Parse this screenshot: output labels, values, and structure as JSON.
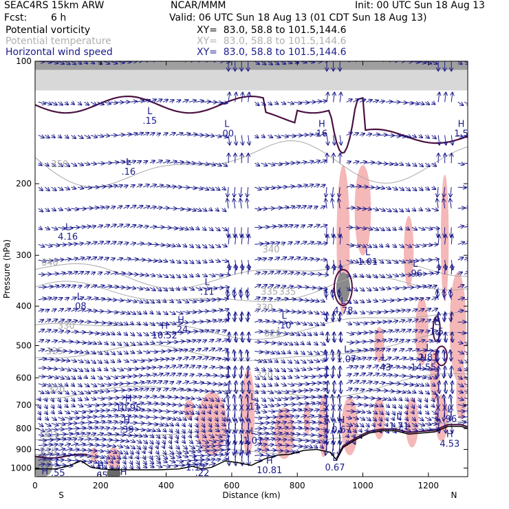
{
  "header": {
    "model": "SEAC4RS 15km ARW",
    "center": "NCAR/MMM",
    "init": "Init: 00 UTC Sun 18 Aug 13",
    "fcst_label": "Fcst:",
    "fcst_value": "6 h",
    "valid": "Valid: 06 UTC Sun 18 Aug 13 (01 CDT Sun 18 Aug 13)",
    "fields": [
      {
        "name": "Potential vorticity",
        "xy": "XY=  83.0, 58.8 to 101.5,144.6",
        "color": "#000000"
      },
      {
        "name": "Potential temperature",
        "xy": "XY=  83.0, 58.8 to 101.5,144.6",
        "color": "#b0b0b0"
      },
      {
        "name": "Horizontal wind speed",
        "xy": "XY=  83.0, 58.8 to 101.5,144.6",
        "color": "#1a1a8c"
      }
    ]
  },
  "chart_data": {
    "type": "cross-section",
    "xlabel": "Distance (km)",
    "ylabel": "Pressure (hPa)",
    "xlim": [
      0,
      1320
    ],
    "ylim": [
      1050,
      100
    ],
    "y_scale": "log",
    "x_ticks": [
      0,
      200,
      400,
      600,
      800,
      1000,
      1200
    ],
    "y_ticks": [
      100,
      200,
      300,
      400,
      500,
      600,
      700,
      800,
      900,
      1000
    ],
    "x_end_labels": {
      "left": "S",
      "right": "N"
    },
    "theta_contours": [
      {
        "value": "350",
        "pressure": 180
      },
      {
        "value": "340",
        "pressure": 335
      },
      {
        "value": "335",
        "pressure": 375
      },
      {
        "value": "330",
        "pressure": 455
      },
      {
        "value": "325",
        "pressure": 525
      },
      {
        "value": "320",
        "pressure": 650
      },
      {
        "value": "315",
        "pressure": 830
      },
      {
        "value": "310",
        "pressure": 925
      }
    ],
    "theta_labels": [
      {
        "text": "350",
        "x": 75,
        "p": 182
      },
      {
        "text": "340",
        "x": 45,
        "p": 318
      },
      {
        "text": "340",
        "x": 720,
        "p": 295
      },
      {
        "text": "335",
        "x": 715,
        "p": 375
      },
      {
        "text": "335",
        "x": 770,
        "p": 375
      },
      {
        "text": "330",
        "x": 95,
        "p": 455
      },
      {
        "text": "330",
        "x": 700,
        "p": 410
      },
      {
        "text": "325",
        "x": 60,
        "p": 525
      },
      {
        "text": "325",
        "x": 725,
        "p": 475
      },
      {
        "text": "320",
        "x": 65,
        "p": 652
      },
      {
        "text": "320",
        "x": 700,
        "p": 602
      },
      {
        "text": "315",
        "x": 50,
        "p": 840
      },
      {
        "text": "310",
        "x": 40,
        "p": 925
      }
    ],
    "extrema": [
      {
        "mark": "L",
        "value": ".16",
        "x": 285,
        "p": 180
      },
      {
        "mark": "L",
        "value": "4.16",
        "x": 100,
        "p": 260
      },
      {
        "mark": "L",
        "value": ".11",
        "x": 525,
        "p": 355
      },
      {
        "mark": "L",
        "value": ".08",
        "x": 135,
        "p": 385
      },
      {
        "mark": "H",
        "value": "10.52",
        "x": 395,
        "p": 455
      },
      {
        "mark": "H",
        "value": ".24",
        "x": 445,
        "p": 440
      },
      {
        "mark": "L",
        "value": ".10",
        "x": 760,
        "p": 430
      },
      {
        "mark": "L",
        "value": "4.78",
        "x": 940,
        "p": 395
      },
      {
        "mark": "L",
        "value": "1.01",
        "x": 1015,
        "p": 300
      },
      {
        "mark": "L",
        "value": ".96",
        "x": 1160,
        "p": 320
      },
      {
        "mark": "L",
        "value": ".00",
        "x": 585,
        "p": 145
      },
      {
        "mark": "L",
        "value": ".15",
        "x": 350,
        "p": 135
      },
      {
        "mark": "H",
        "value": "16",
        "x": 875,
        "p": 145
      },
      {
        "mark": "L",
        "value": "1.07",
        "x": 950,
        "p": 520
      },
      {
        "mark": "L",
        "value": ".43",
        "x": 1065,
        "p": 545
      },
      {
        "mark": "H",
        "value": "14.55",
        "x": 1185,
        "p": 545
      },
      {
        "mark": "L",
        "value": "2.81",
        "x": 1200,
        "p": 515
      },
      {
        "mark": "L",
        "value": "1.5",
        "x": 1225,
        "p": 445
      },
      {
        "mark": "L",
        "value": ".11",
        "x": 665,
        "p": 680
      },
      {
        "mark": "H",
        "value": "10.95",
        "x": 285,
        "p": 685
      },
      {
        "mark": "H",
        "value": ".39",
        "x": 280,
        "p": 775
      },
      {
        "mark": "L",
        "value": "1.01",
        "x": 665,
        "p": 825
      },
      {
        "mark": "H",
        "value": "0.67",
        "x": 935,
        "p": 775
      },
      {
        "mark": "L",
        "value": "1.71",
        "x": 1110,
        "p": 760
      },
      {
        "mark": "L",
        "value": ".96",
        "x": 1265,
        "p": 730
      },
      {
        "mark": "H",
        "value": "4.53",
        "x": 1265,
        "p": 840
      },
      {
        "mark": "L",
        "value": "1.12",
        "x": 490,
        "p": 960
      },
      {
        "mark": "L",
        "value": "0.67",
        "x": 915,
        "p": 960
      },
      {
        "mark": "H",
        "value": "10.81",
        "x": 715,
        "p": 975
      },
      {
        "mark": "L",
        "value": ".55",
        "x": 70,
        "p": 990
      },
      {
        "mark": "H",
        "value": ".61",
        "x": 30,
        "p": 1035
      },
      {
        "mark": "H",
        "value": ".65",
        "x": 200,
        "p": 1005
      },
      {
        "mark": "H",
        "value": "8.20",
        "x": 270,
        "p": 1040
      },
      {
        "mark": "L",
        "value": ".22",
        "x": 510,
        "p": 990
      },
      {
        "mark": "H",
        "value": "1.5",
        "x": 1300,
        "p": 145
      }
    ]
  },
  "colors": {
    "pv": "#4a1040",
    "theta": "#a8a8a8",
    "wind": "#1a1a8c",
    "shade_pink": "#f5b8b8",
    "shade_gray": "#7a7a7a",
    "terrain": "#000000"
  }
}
